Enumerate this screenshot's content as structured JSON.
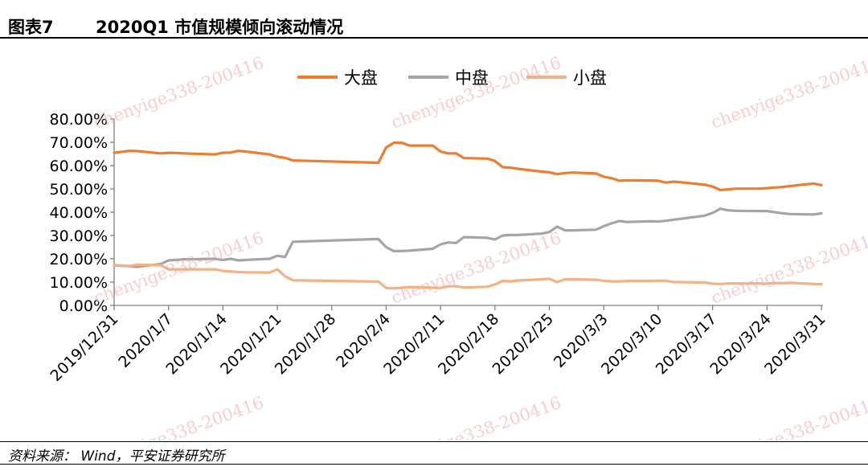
{
  "header": {
    "figure_label": "图表7",
    "title": "2020Q1 市值规模倾向滚动情况"
  },
  "footer": {
    "source": "资料来源：  Wind，平安证券研究所"
  },
  "watermark": "chenyige338-200416",
  "colors": {
    "large": "#ED7D31",
    "mid": "#A5A5A5",
    "small": "#F4B183"
  },
  "chart_data": {
    "type": "line",
    "title": "",
    "xlabel": "",
    "ylabel": "",
    "ylim": [
      0,
      0.8
    ],
    "yticks": [
      "0.00%",
      "10.00%",
      "20.00%",
      "30.00%",
      "40.00%",
      "50.00%",
      "60.00%",
      "70.00%",
      "80.00%"
    ],
    "xlim": [
      "2019-12-31",
      "2020-03-31"
    ],
    "xticks": [
      "2019/12/31",
      "2020/1/7",
      "2020/1/14",
      "2020/1/21",
      "2020/1/28",
      "2020/2/4",
      "2020/2/11",
      "2020/2/18",
      "2020/2/25",
      "2020/3/3",
      "2020/3/10",
      "2020/3/17",
      "2020/3/24",
      "2020/3/31"
    ],
    "legend_position": "top-center",
    "grid": false,
    "series": [
      {
        "name": "大盘",
        "color_key": "large",
        "points": [
          [
            "2019-12-31",
            0.655
          ],
          [
            "2020-01-02",
            0.663
          ],
          [
            "2020-01-03",
            0.662
          ],
          [
            "2020-01-06",
            0.652
          ],
          [
            "2020-01-07",
            0.655
          ],
          [
            "2020-01-08",
            0.654
          ],
          [
            "2020-01-09",
            0.652
          ],
          [
            "2020-01-10",
            0.651
          ],
          [
            "2020-01-13",
            0.648
          ],
          [
            "2020-01-14",
            0.655
          ],
          [
            "2020-01-15",
            0.656
          ],
          [
            "2020-01-16",
            0.663
          ],
          [
            "2020-01-17",
            0.66
          ],
          [
            "2020-01-20",
            0.648
          ],
          [
            "2020-01-21",
            0.638
          ],
          [
            "2020-01-22",
            0.633
          ],
          [
            "2020-01-23",
            0.622
          ],
          [
            "2020-02-03",
            0.612
          ],
          [
            "2020-02-04",
            0.678
          ],
          [
            "2020-02-05",
            0.698
          ],
          [
            "2020-02-06",
            0.698
          ],
          [
            "2020-02-07",
            0.686
          ],
          [
            "2020-02-10",
            0.686
          ],
          [
            "2020-02-11",
            0.66
          ],
          [
            "2020-02-12",
            0.652
          ],
          [
            "2020-02-13",
            0.652
          ],
          [
            "2020-02-14",
            0.632
          ],
          [
            "2020-02-17",
            0.63
          ],
          [
            "2020-02-18",
            0.62
          ],
          [
            "2020-02-19",
            0.593
          ],
          [
            "2020-02-20",
            0.591
          ],
          [
            "2020-02-21",
            0.586
          ],
          [
            "2020-02-24",
            0.574
          ],
          [
            "2020-02-25",
            0.571
          ],
          [
            "2020-02-26",
            0.563
          ],
          [
            "2020-02-27",
            0.568
          ],
          [
            "2020-02-28",
            0.57
          ],
          [
            "2020-03-02",
            0.566
          ],
          [
            "2020-03-03",
            0.552
          ],
          [
            "2020-03-04",
            0.546
          ],
          [
            "2020-03-05",
            0.535
          ],
          [
            "2020-03-06",
            0.537
          ],
          [
            "2020-03-09",
            0.536
          ],
          [
            "2020-03-10",
            0.535
          ],
          [
            "2020-03-11",
            0.527
          ],
          [
            "2020-03-12",
            0.531
          ],
          [
            "2020-03-13",
            0.528
          ],
          [
            "2020-03-16",
            0.518
          ],
          [
            "2020-03-17",
            0.51
          ],
          [
            "2020-03-18",
            0.495
          ],
          [
            "2020-03-19",
            0.498
          ],
          [
            "2020-03-20",
            0.501
          ],
          [
            "2020-03-23",
            0.501
          ],
          [
            "2020-03-24",
            0.503
          ],
          [
            "2020-03-25",
            0.506
          ],
          [
            "2020-03-26",
            0.508
          ],
          [
            "2020-03-27",
            0.512
          ],
          [
            "2020-03-30",
            0.523
          ],
          [
            "2020-03-31",
            0.516
          ]
        ]
      },
      {
        "name": "中盘",
        "color_key": "mid",
        "points": [
          [
            "2019-12-31",
            0.172
          ],
          [
            "2020-01-02",
            0.168
          ],
          [
            "2020-01-03",
            0.165
          ],
          [
            "2020-01-06",
            0.178
          ],
          [
            "2020-01-07",
            0.193
          ],
          [
            "2020-01-08",
            0.195
          ],
          [
            "2020-01-09",
            0.198
          ],
          [
            "2020-01-10",
            0.198
          ],
          [
            "2020-01-13",
            0.2
          ],
          [
            "2020-01-14",
            0.195
          ],
          [
            "2020-01-15",
            0.2
          ],
          [
            "2020-01-16",
            0.193
          ],
          [
            "2020-01-17",
            0.195
          ],
          [
            "2020-01-20",
            0.2
          ],
          [
            "2020-01-21",
            0.213
          ],
          [
            "2020-01-22",
            0.208
          ],
          [
            "2020-01-23",
            0.273
          ],
          [
            "2020-02-03",
            0.285
          ],
          [
            "2020-02-04",
            0.25
          ],
          [
            "2020-02-05",
            0.233
          ],
          [
            "2020-02-06",
            0.233
          ],
          [
            "2020-02-07",
            0.235
          ],
          [
            "2020-02-10",
            0.243
          ],
          [
            "2020-02-11",
            0.262
          ],
          [
            "2020-02-12",
            0.27
          ],
          [
            "2020-02-13",
            0.268
          ],
          [
            "2020-02-14",
            0.293
          ],
          [
            "2020-02-17",
            0.29
          ],
          [
            "2020-02-18",
            0.283
          ],
          [
            "2020-02-19",
            0.3
          ],
          [
            "2020-02-20",
            0.302
          ],
          [
            "2020-02-21",
            0.302
          ],
          [
            "2020-02-24",
            0.308
          ],
          [
            "2020-02-25",
            0.315
          ],
          [
            "2020-02-26",
            0.338
          ],
          [
            "2020-02-27",
            0.322
          ],
          [
            "2020-02-28",
            0.322
          ],
          [
            "2020-03-02",
            0.325
          ],
          [
            "2020-03-03",
            0.34
          ],
          [
            "2020-03-04",
            0.352
          ],
          [
            "2020-03-05",
            0.362
          ],
          [
            "2020-03-06",
            0.358
          ],
          [
            "2020-03-09",
            0.361
          ],
          [
            "2020-03-10",
            0.36
          ],
          [
            "2020-03-11",
            0.363
          ],
          [
            "2020-03-12",
            0.368
          ],
          [
            "2020-03-13",
            0.372
          ],
          [
            "2020-03-16",
            0.385
          ],
          [
            "2020-03-17",
            0.397
          ],
          [
            "2020-03-18",
            0.415
          ],
          [
            "2020-03-19",
            0.408
          ],
          [
            "2020-03-20",
            0.406
          ],
          [
            "2020-03-23",
            0.405
          ],
          [
            "2020-03-24",
            0.405
          ],
          [
            "2020-03-25",
            0.4
          ],
          [
            "2020-03-26",
            0.395
          ],
          [
            "2020-03-27",
            0.392
          ],
          [
            "2020-03-30",
            0.39
          ],
          [
            "2020-03-31",
            0.395
          ]
        ]
      },
      {
        "name": "小盘",
        "color_key": "small",
        "points": [
          [
            "2019-12-31",
            0.173
          ],
          [
            "2020-01-02",
            0.169
          ],
          [
            "2020-01-03",
            0.175
          ],
          [
            "2020-01-06",
            0.172
          ],
          [
            "2020-01-07",
            0.155
          ],
          [
            "2020-01-08",
            0.155
          ],
          [
            "2020-01-09",
            0.155
          ],
          [
            "2020-01-10",
            0.155
          ],
          [
            "2020-01-13",
            0.155
          ],
          [
            "2020-01-14",
            0.148
          ],
          [
            "2020-01-15",
            0.146
          ],
          [
            "2020-01-16",
            0.143
          ],
          [
            "2020-01-17",
            0.142
          ],
          [
            "2020-01-20",
            0.141
          ],
          [
            "2020-01-21",
            0.155
          ],
          [
            "2020-01-22",
            0.125
          ],
          [
            "2020-01-23",
            0.108
          ],
          [
            "2020-02-03",
            0.102
          ],
          [
            "2020-02-04",
            0.075
          ],
          [
            "2020-02-05",
            0.073
          ],
          [
            "2020-02-06",
            0.076
          ],
          [
            "2020-02-07",
            0.079
          ],
          [
            "2020-02-10",
            0.076
          ],
          [
            "2020-02-11",
            0.075
          ],
          [
            "2020-02-12",
            0.082
          ],
          [
            "2020-02-13",
            0.082
          ],
          [
            "2020-02-14",
            0.077
          ],
          [
            "2020-02-17",
            0.08
          ],
          [
            "2020-02-18",
            0.09
          ],
          [
            "2020-02-19",
            0.105
          ],
          [
            "2020-02-20",
            0.103
          ],
          [
            "2020-02-21",
            0.107
          ],
          [
            "2020-02-24",
            0.112
          ],
          [
            "2020-02-25",
            0.114
          ],
          [
            "2020-02-26",
            0.1
          ],
          [
            "2020-02-27",
            0.112
          ],
          [
            "2020-02-28",
            0.112
          ],
          [
            "2020-03-02",
            0.11
          ],
          [
            "2020-03-03",
            0.106
          ],
          [
            "2020-03-04",
            0.103
          ],
          [
            "2020-03-05",
            0.103
          ],
          [
            "2020-03-06",
            0.105
          ],
          [
            "2020-03-09",
            0.105
          ],
          [
            "2020-03-10",
            0.106
          ],
          [
            "2020-03-11",
            0.106
          ],
          [
            "2020-03-12",
            0.1
          ],
          [
            "2020-03-13",
            0.1
          ],
          [
            "2020-03-16",
            0.098
          ],
          [
            "2020-03-17",
            0.093
          ],
          [
            "2020-03-18",
            0.092
          ],
          [
            "2020-03-19",
            0.094
          ],
          [
            "2020-03-20",
            0.094
          ],
          [
            "2020-03-23",
            0.094
          ],
          [
            "2020-03-24",
            0.093
          ],
          [
            "2020-03-25",
            0.096
          ],
          [
            "2020-03-26",
            0.095
          ],
          [
            "2020-03-27",
            0.097
          ],
          [
            "2020-03-30",
            0.092
          ],
          [
            "2020-03-31",
            0.091
          ]
        ]
      }
    ]
  }
}
